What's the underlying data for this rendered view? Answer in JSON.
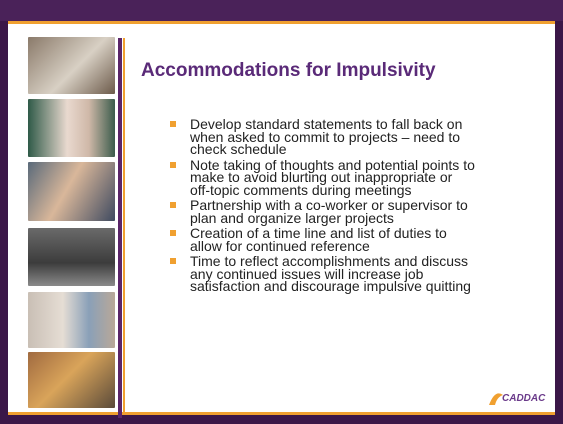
{
  "slide": {
    "title": "Accommodations for Impulsivity",
    "bullets": [
      [
        "Develop standard statements to fall back on",
        "when asked to commit to projects – need to",
        "check  schedule"
      ],
      [
        "Note taking of thoughts and potential points to",
        "make to avoid blurting out inappropriate or",
        "off-topic comments during meetings"
      ],
      [
        "Partnership with a co-worker or supervisor to",
        "plan and organize larger projects"
      ],
      [
        "Creation of a time line and list of duties to",
        "allow for continued reference"
      ],
      [
        "Time to reflect accomplishments and discuss",
        "any continued issues will increase job",
        "satisfaction and discourage impulsive quitting"
      ]
    ],
    "logo": "CADDAC"
  }
}
